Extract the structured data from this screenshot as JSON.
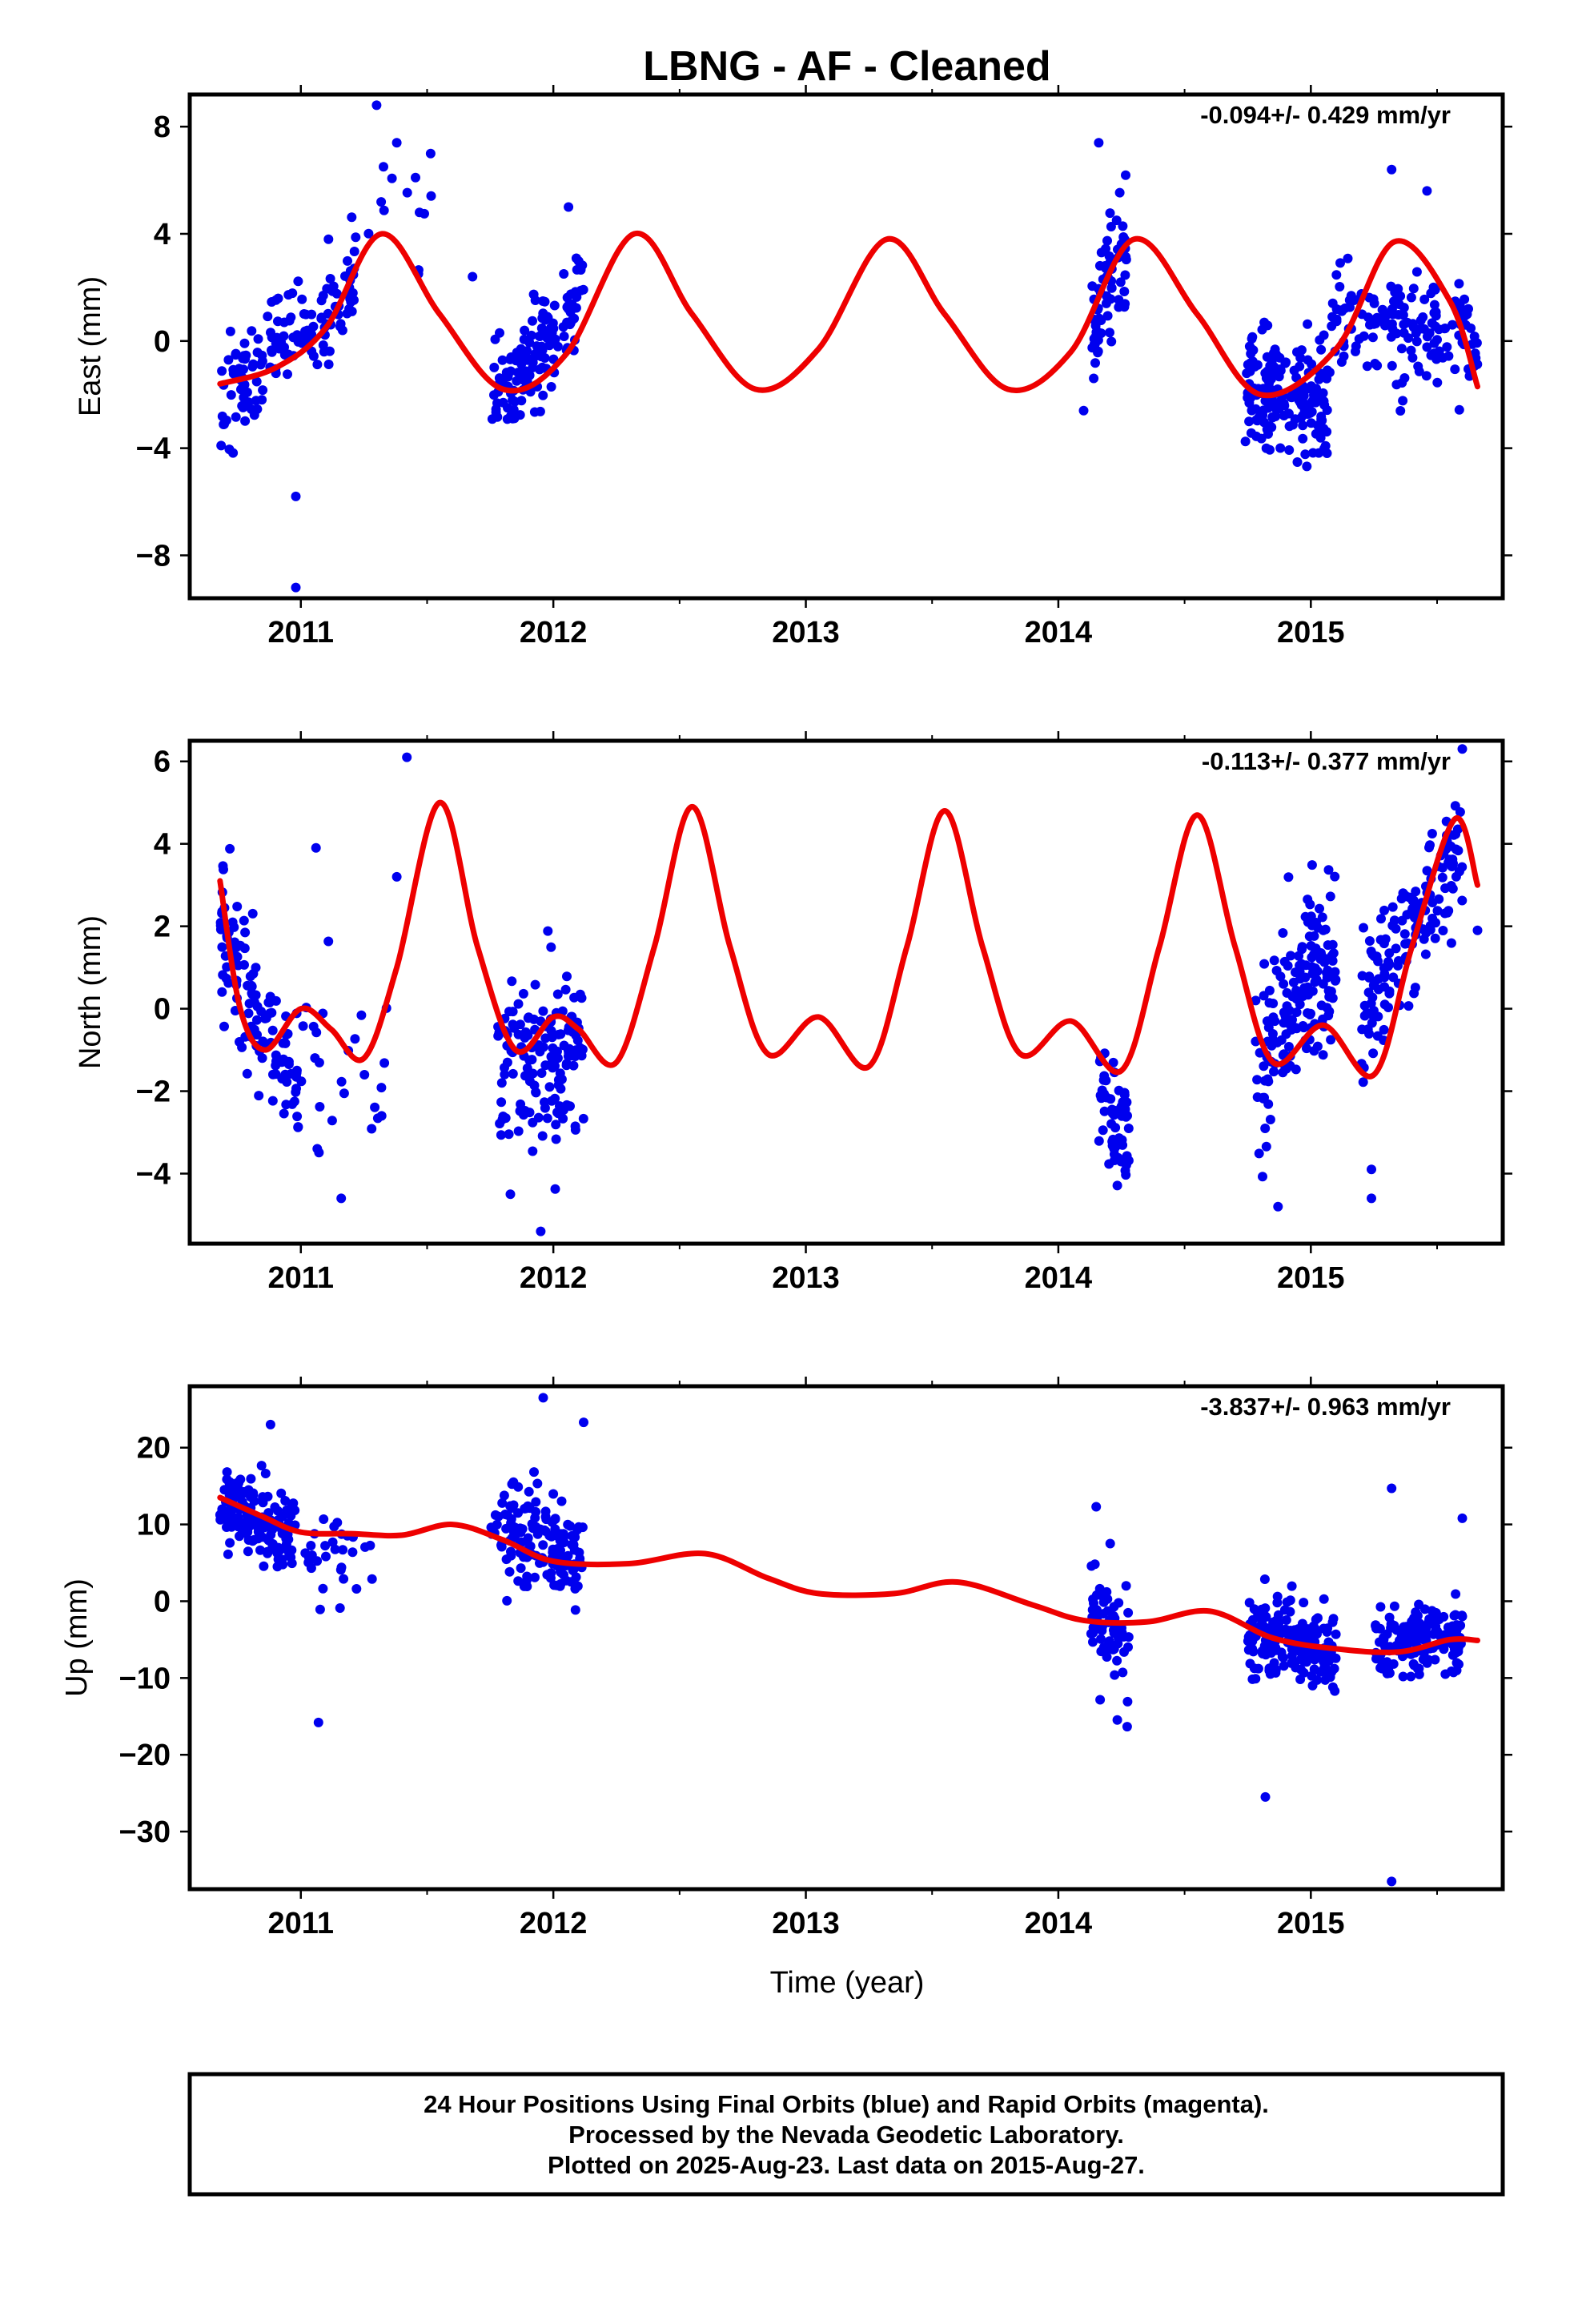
{
  "title": "LBNG  - AF - Cleaned",
  "xlabel": "Time (year)",
  "footer": {
    "line1": "24 Hour Positions Using Final Orbits (blue) and Rapid Orbits (magenta).",
    "line2": "Processed by the Nevada Geodetic Laboratory.",
    "line3": "Plotted on 2025-Aug-23. Last data on 2015-Aug-27."
  },
  "colors": {
    "points": "#0000ee",
    "model": "#ee0000",
    "frame": "#000000"
  },
  "chart_data": [
    {
      "type": "scatter",
      "component": "East",
      "ylabel": "East (mm)",
      "rate_label": "-0.094+/- 0.429 mm/yr",
      "xlim": [
        2010.56,
        2015.76
      ],
      "ylim": [
        -9.6,
        9.2
      ],
      "yticks": [
        -8,
        -4,
        0,
        4,
        8
      ],
      "xticks": [
        2011,
        2012,
        2013,
        2014,
        2015
      ],
      "tick_labels": {
        "x": [
          "2011",
          "2012",
          "2013",
          "2014",
          "2015"
        ],
        "y": [
          "−8",
          "−4",
          "0",
          "4",
          "8"
        ]
      },
      "scatter_segments": [
        {
          "start": 2010.68,
          "end": 2011.22,
          "n": 150,
          "y0": -2.2,
          "y1": 2.2,
          "noise": 1.2
        },
        {
          "start": 2011.22,
          "end": 2011.52,
          "n": 12,
          "y0": 4.5,
          "y1": 5.5,
          "noise": 1.6
        },
        {
          "start": 2011.75,
          "end": 2012.12,
          "n": 140,
          "y0": -2.5,
          "y1": 1.5,
          "noise": 1.1
        },
        {
          "start": 2014.13,
          "end": 2014.27,
          "n": 70,
          "y0": 0.0,
          "y1": 4.0,
          "noise": 1.6
        },
        {
          "start": 2014.74,
          "end": 2015.08,
          "n": 190,
          "y0": -1.5,
          "y1": -2.5,
          "noise": 1.4
        },
        {
          "start": 2015.08,
          "end": 2015.66,
          "n": 150,
          "y0": 1.0,
          "y1": 0.0,
          "noise": 1.3
        }
      ],
      "outliers": [
        [
          2011.3,
          8.8
        ],
        [
          2011.38,
          7.4
        ],
        [
          2010.98,
          -9.2
        ],
        [
          2010.98,
          -5.8
        ],
        [
          2011.47,
          4.8
        ],
        [
          2011.68,
          2.4
        ],
        [
          2014.16,
          7.4
        ],
        [
          2015.32,
          6.4
        ],
        [
          2015.46,
          5.6
        ],
        [
          2014.1,
          -2.6
        ],
        [
          2012.06,
          5.0
        ]
      ],
      "model": [
        [
          2010.68,
          -1.6
        ],
        [
          2010.9,
          -1.0
        ],
        [
          2011.1,
          0.5
        ],
        [
          2011.32,
          4.0
        ],
        [
          2011.55,
          1.0
        ],
        [
          2011.8,
          -1.8
        ],
        [
          2012.05,
          -0.5
        ],
        [
          2012.32,
          4.0
        ],
        [
          2012.55,
          1.0
        ],
        [
          2012.8,
          -1.8
        ],
        [
          2013.05,
          -0.3
        ],
        [
          2013.32,
          3.8
        ],
        [
          2013.55,
          1.0
        ],
        [
          2013.8,
          -1.8
        ],
        [
          2014.05,
          -0.4
        ],
        [
          2014.3,
          3.8
        ],
        [
          2014.55,
          1.0
        ],
        [
          2014.8,
          -2.0
        ],
        [
          2015.1,
          -0.3
        ],
        [
          2015.33,
          3.7
        ],
        [
          2015.55,
          1.5
        ],
        [
          2015.66,
          -1.7
        ]
      ]
    },
    {
      "type": "scatter",
      "component": "North",
      "ylabel": "North (mm)",
      "rate_label": "-0.113+/- 0.377 mm/yr",
      "xlim": [
        2010.56,
        2015.76
      ],
      "ylim": [
        -5.7,
        6.5
      ],
      "yticks": [
        -4,
        -2,
        0,
        2,
        4,
        6
      ],
      "xticks": [
        2011,
        2012,
        2013,
        2014,
        2015
      ],
      "tick_labels": {
        "x": [
          "2011",
          "2012",
          "2013",
          "2014",
          "2015"
        ],
        "y": [
          "−4",
          "−2",
          "0",
          "2",
          "4",
          "6"
        ]
      },
      "scatter_segments": [
        {
          "start": 2010.68,
          "end": 2011.0,
          "n": 120,
          "y0": 1.8,
          "y1": -2.2,
          "noise": 1.1
        },
        {
          "start": 2011.0,
          "end": 2011.35,
          "n": 25,
          "y0": -1.0,
          "y1": -1.5,
          "noise": 1.6
        },
        {
          "start": 2011.78,
          "end": 2012.12,
          "n": 140,
          "y0": -1.5,
          "y1": -1.0,
          "noise": 1.2
        },
        {
          "start": 2014.15,
          "end": 2014.28,
          "n": 60,
          "y0": -2.0,
          "y1": -3.0,
          "noise": 1.0
        },
        {
          "start": 2014.78,
          "end": 2015.1,
          "n": 170,
          "y0": -1.5,
          "y1": 1.5,
          "noise": 1.3
        },
        {
          "start": 2015.2,
          "end": 2015.6,
          "n": 150,
          "y0": 0.0,
          "y1": 4.0,
          "noise": 1.0
        }
      ],
      "outliers": [
        [
          2011.42,
          6.1
        ],
        [
          2011.06,
          3.9
        ],
        [
          2011.38,
          3.2
        ],
        [
          2011.16,
          -4.6
        ],
        [
          2011.32,
          -2.6
        ],
        [
          2011.95,
          -5.4
        ],
        [
          2011.83,
          -4.5
        ],
        [
          2015.24,
          -3.9
        ],
        [
          2015.24,
          -4.6
        ],
        [
          2015.6,
          6.3
        ],
        [
          2014.87,
          -4.8
        ],
        [
          2015.66,
          1.9
        ]
      ],
      "model": [
        [
          2010.68,
          3.1
        ],
        [
          2010.76,
          0.0
        ],
        [
          2010.86,
          -1.0
        ],
        [
          2011.0,
          0.0
        ],
        [
          2011.12,
          -0.5
        ],
        [
          2011.25,
          -1.2
        ],
        [
          2011.38,
          1.0
        ],
        [
          2011.55,
          5.0
        ],
        [
          2011.7,
          1.5
        ],
        [
          2011.85,
          -1.0
        ],
        [
          2012.0,
          -0.2
        ],
        [
          2012.1,
          -0.5
        ],
        [
          2012.25,
          -1.3
        ],
        [
          2012.4,
          1.5
        ],
        [
          2012.55,
          4.9
        ],
        [
          2012.7,
          1.5
        ],
        [
          2012.85,
          -1.1
        ],
        [
          2013.05,
          -0.2
        ],
        [
          2013.25,
          -1.4
        ],
        [
          2013.4,
          1.5
        ],
        [
          2013.55,
          4.8
        ],
        [
          2013.7,
          1.5
        ],
        [
          2013.85,
          -1.1
        ],
        [
          2014.05,
          -0.3
        ],
        [
          2014.25,
          -1.5
        ],
        [
          2014.4,
          1.5
        ],
        [
          2014.55,
          4.7
        ],
        [
          2014.7,
          1.5
        ],
        [
          2014.85,
          -1.3
        ],
        [
          2015.05,
          -0.4
        ],
        [
          2015.25,
          -1.6
        ],
        [
          2015.4,
          1.5
        ],
        [
          2015.57,
          4.6
        ],
        [
          2015.66,
          3.0
        ]
      ]
    },
    {
      "type": "scatter",
      "component": "Up",
      "ylabel": "Up (mm)",
      "rate_label": "-3.837+/- 0.963 mm/yr",
      "xlim": [
        2010.56,
        2015.76
      ],
      "ylim": [
        -37.5,
        28.0
      ],
      "yticks": [
        -30,
        -20,
        -10,
        0,
        10,
        20
      ],
      "xticks": [
        2011,
        2012,
        2013,
        2014,
        2015
      ],
      "tick_labels": {
        "x": [
          "2011",
          "2012",
          "2013",
          "2014",
          "2015"
        ],
        "y": [
          "−30",
          "−20",
          "−10",
          "0",
          "10",
          "20"
        ]
      },
      "scatter_segments": [
        {
          "start": 2010.68,
          "end": 2010.98,
          "n": 150,
          "y0": 13.0,
          "y1": 8.0,
          "noise": 3.2
        },
        {
          "start": 2010.98,
          "end": 2011.3,
          "n": 30,
          "y0": 6.0,
          "y1": 6.0,
          "noise": 4.0
        },
        {
          "start": 2011.75,
          "end": 2012.12,
          "n": 150,
          "y0": 10.0,
          "y1": 5.0,
          "noise": 4.5
        },
        {
          "start": 2014.13,
          "end": 2014.28,
          "n": 70,
          "y0": 0.0,
          "y1": -8.0,
          "noise": 5.5
        },
        {
          "start": 2014.75,
          "end": 2015.1,
          "n": 190,
          "y0": -5.0,
          "y1": -7.0,
          "noise": 3.5
        },
        {
          "start": 2015.25,
          "end": 2015.6,
          "n": 150,
          "y0": -6.0,
          "y1": -4.0,
          "noise": 3.0
        }
      ],
      "outliers": [
        [
          2011.07,
          -15.8
        ],
        [
          2014.82,
          -25.5
        ],
        [
          2015.32,
          -36.5
        ],
        [
          2015.32,
          14.7
        ],
        [
          2011.96,
          26.5
        ],
        [
          2012.12,
          23.3
        ],
        [
          2010.88,
          23.0
        ],
        [
          2015.6,
          10.8
        ],
        [
          2014.15,
          12.3
        ]
      ],
      "model": [
        [
          2010.68,
          13.5
        ],
        [
          2010.85,
          11.0
        ],
        [
          2011.0,
          9.0
        ],
        [
          2011.2,
          8.8
        ],
        [
          2011.4,
          8.6
        ],
        [
          2011.6,
          10.0
        ],
        [
          2011.8,
          8.0
        ],
        [
          2012.0,
          5.2
        ],
        [
          2012.3,
          4.9
        ],
        [
          2012.6,
          6.2
        ],
        [
          2012.85,
          3.0
        ],
        [
          2013.05,
          1.0
        ],
        [
          2013.35,
          1.0
        ],
        [
          2013.6,
          2.5
        ],
        [
          2013.9,
          -0.5
        ],
        [
          2014.1,
          -2.5
        ],
        [
          2014.35,
          -2.7
        ],
        [
          2014.6,
          -1.3
        ],
        [
          2014.85,
          -4.8
        ],
        [
          2015.1,
          -6.2
        ],
        [
          2015.35,
          -6.6
        ],
        [
          2015.55,
          -5.0
        ],
        [
          2015.66,
          -5.1
        ]
      ]
    }
  ]
}
